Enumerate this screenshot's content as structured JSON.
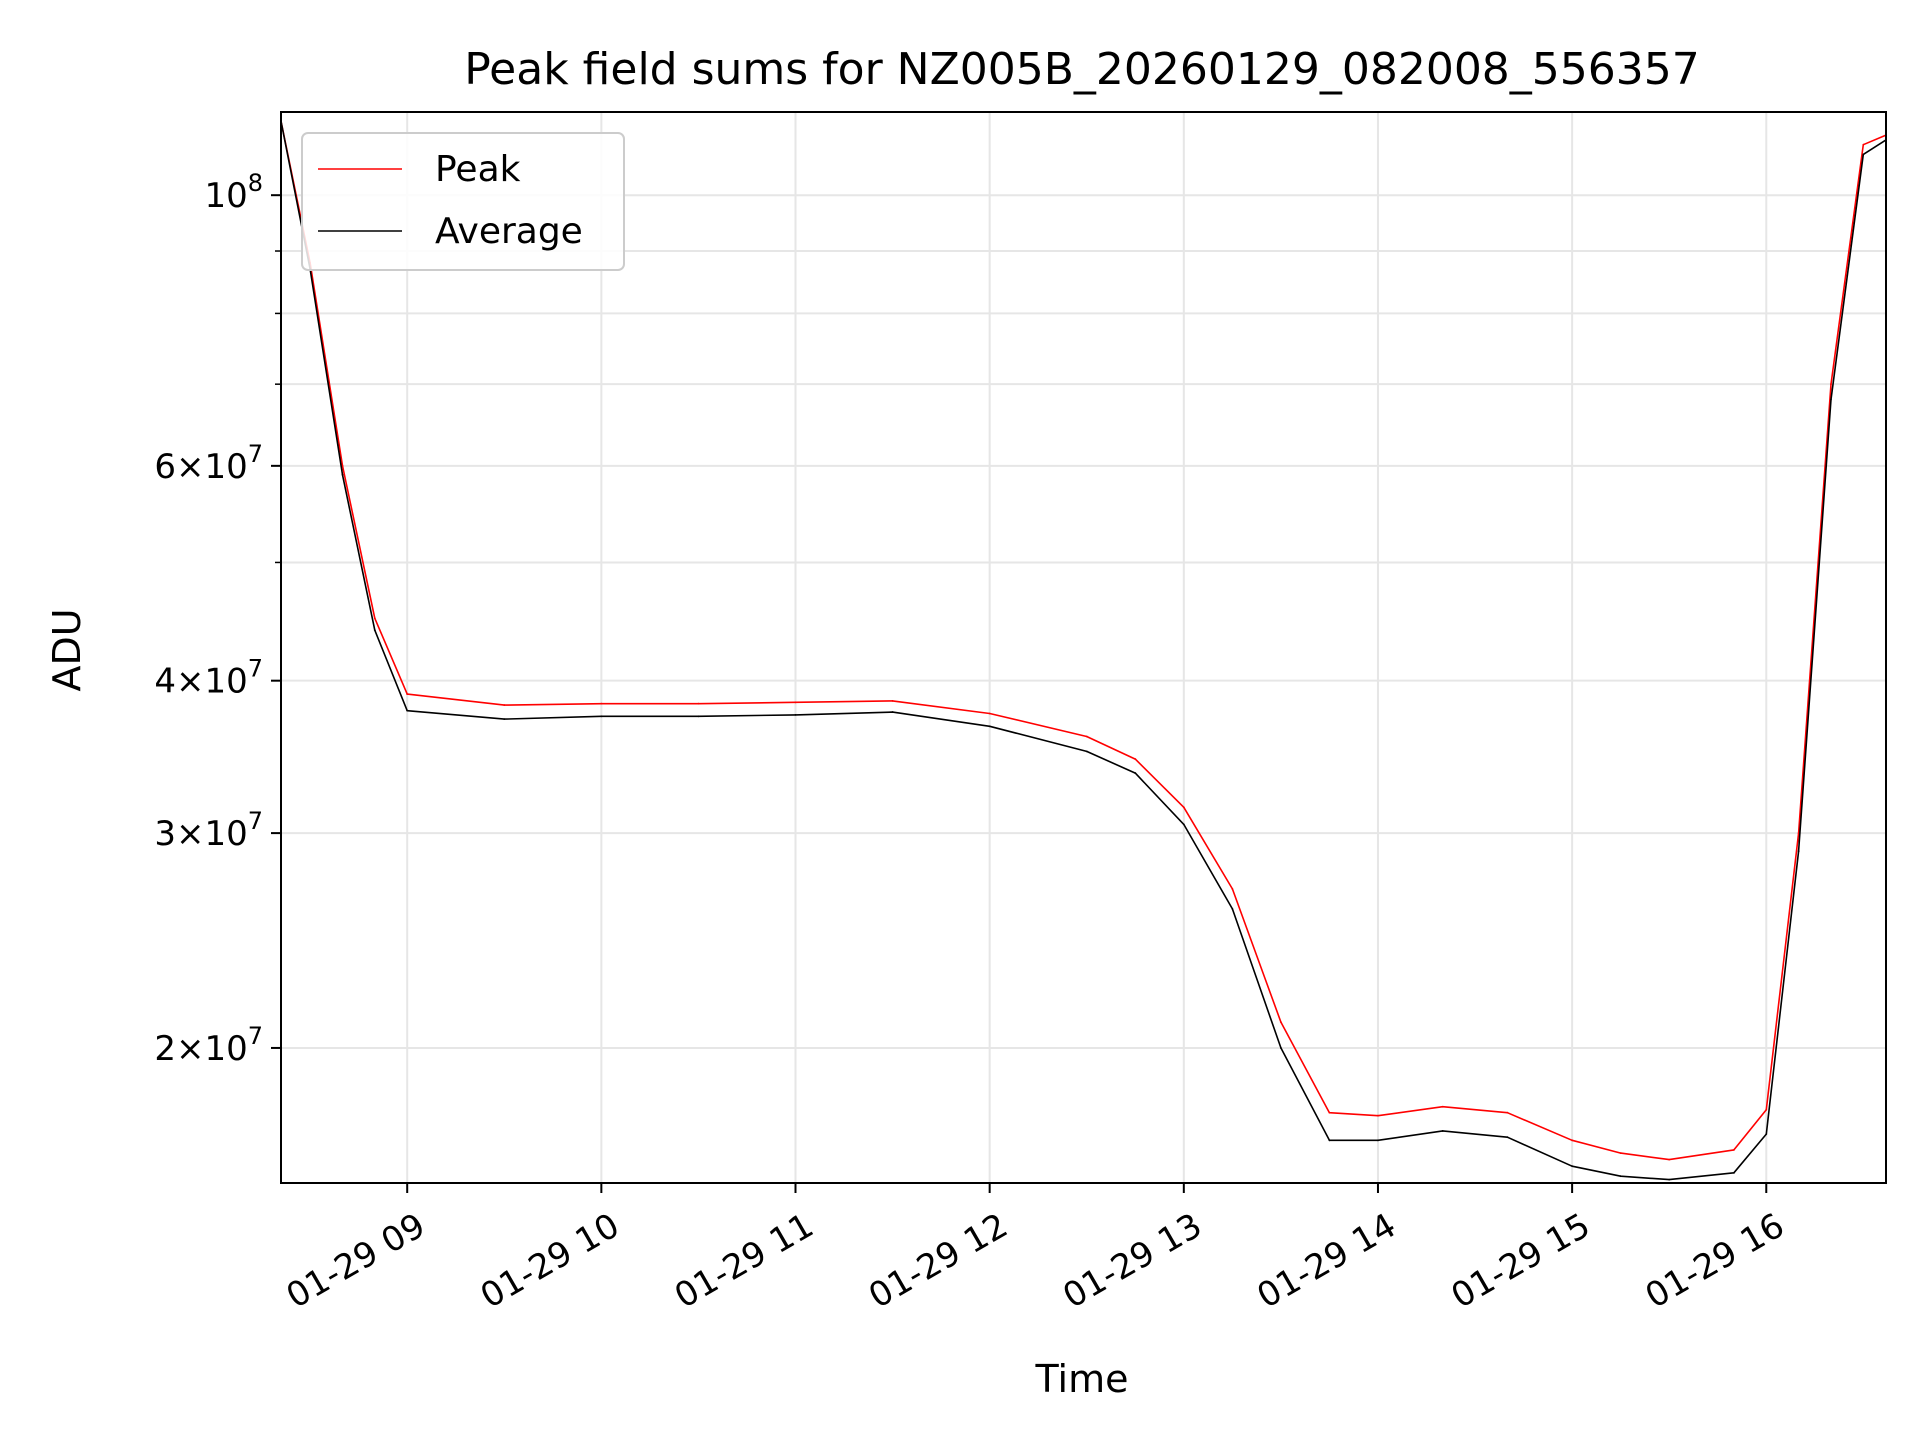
{
  "chart_data": {
    "type": "line",
    "title": "Peak field sums for NZ005B_20260129_082008_556357",
    "xlabel": "Time",
    "ylabel": "ADU",
    "x_scale": "time",
    "y_scale": "log",
    "xlim": [
      "2026-01-29T08:21",
      "2026-01-29T16:37"
    ],
    "ylim": [
      15500000,
      117000000
    ],
    "grid": true,
    "legend_position": "upper-left",
    "x_ticks": [
      {
        "value": "2026-01-29T09:00",
        "label": "01-29 09"
      },
      {
        "value": "2026-01-29T10:00",
        "label": "01-29 10"
      },
      {
        "value": "2026-01-29T11:00",
        "label": "01-29 11"
      },
      {
        "value": "2026-01-29T12:00",
        "label": "01-29 12"
      },
      {
        "value": "2026-01-29T13:00",
        "label": "01-29 13"
      },
      {
        "value": "2026-01-29T14:00",
        "label": "01-29 14"
      },
      {
        "value": "2026-01-29T15:00",
        "label": "01-29 15"
      },
      {
        "value": "2026-01-29T16:00",
        "label": "01-29 16"
      }
    ],
    "y_ticks": [
      {
        "value": 20000000,
        "mantissa": "2",
        "exponent": "7"
      },
      {
        "value": 30000000,
        "mantissa": "3",
        "exponent": "7"
      },
      {
        "value": 40000000,
        "mantissa": "4",
        "exponent": "7"
      },
      {
        "value": 60000000,
        "mantissa": "6",
        "exponent": "7"
      },
      {
        "value": 100000000,
        "mantissa": "",
        "exponent": "8"
      }
    ],
    "y_minor_ticks": [
      50000000,
      70000000,
      80000000,
      90000000
    ],
    "series": [
      {
        "name": "Peak",
        "color": "#ff0000",
        "x": [
          "2026-01-29T08:21",
          "2026-01-29T08:30",
          "2026-01-29T08:40",
          "2026-01-29T08:50",
          "2026-01-29T09:00",
          "2026-01-29T09:30",
          "2026-01-29T10:00",
          "2026-01-29T10:30",
          "2026-01-29T11:00",
          "2026-01-29T11:30",
          "2026-01-29T12:00",
          "2026-01-29T12:30",
          "2026-01-29T12:45",
          "2026-01-29T13:00",
          "2026-01-29T13:15",
          "2026-01-29T13:30",
          "2026-01-29T13:45",
          "2026-01-29T14:00",
          "2026-01-29T14:20",
          "2026-01-29T14:40",
          "2026-01-29T15:00",
          "2026-01-29T15:15",
          "2026-01-29T15:30",
          "2026-01-29T15:50",
          "2026-01-29T16:00",
          "2026-01-29T16:10",
          "2026-01-29T16:20",
          "2026-01-29T16:30",
          "2026-01-29T16:37"
        ],
        "y": [
          115000000,
          88000000,
          60000000,
          45000000,
          39000000,
          38200000,
          38300000,
          38300000,
          38400000,
          38500000,
          37600000,
          36000000,
          34500000,
          31500000,
          27000000,
          21000000,
          17700000,
          17600000,
          17900000,
          17700000,
          16800000,
          16400000,
          16200000,
          16500000,
          17800000,
          30000000,
          70000000,
          110000000,
          112000000
        ]
      },
      {
        "name": "Average",
        "color": "#000000",
        "x": [
          "2026-01-29T08:21",
          "2026-01-29T08:30",
          "2026-01-29T08:40",
          "2026-01-29T08:50",
          "2026-01-29T09:00",
          "2026-01-29T09:30",
          "2026-01-29T10:00",
          "2026-01-29T10:30",
          "2026-01-29T11:00",
          "2026-01-29T11:30",
          "2026-01-29T12:00",
          "2026-01-29T12:30",
          "2026-01-29T12:45",
          "2026-01-29T13:00",
          "2026-01-29T13:15",
          "2026-01-29T13:30",
          "2026-01-29T13:45",
          "2026-01-29T14:00",
          "2026-01-29T14:20",
          "2026-01-29T14:40",
          "2026-01-29T15:00",
          "2026-01-29T15:15",
          "2026-01-29T15:30",
          "2026-01-29T15:50",
          "2026-01-29T16:00",
          "2026-01-29T16:10",
          "2026-01-29T16:20",
          "2026-01-29T16:30",
          "2026-01-29T16:37"
        ],
        "y": [
          115000000,
          87000000,
          59000000,
          44000000,
          37800000,
          37200000,
          37400000,
          37400000,
          37500000,
          37700000,
          36700000,
          35000000,
          33600000,
          30500000,
          26000000,
          20000000,
          16800000,
          16800000,
          17100000,
          16900000,
          16000000,
          15700000,
          15600000,
          15800000,
          17000000,
          29000000,
          68000000,
          108000000,
          111000000
        ]
      }
    ]
  }
}
